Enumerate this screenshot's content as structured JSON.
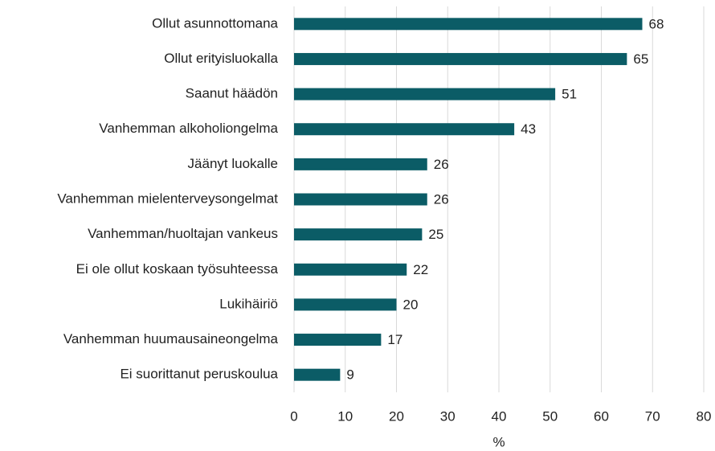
{
  "chart_data": {
    "type": "bar",
    "orientation": "horizontal",
    "categories": [
      "Ollut asunnottomana",
      "Ollut erityisluokalla",
      "Saanut häädön",
      "Vanhemman alkoholiongelma",
      "Jäänyt luokalle",
      "Vanhemman mielenterveysongelmat",
      "Vanhemman/huoltajan vankeus",
      "Ei ole ollut koskaan työsuhteessa",
      "Lukihäiriö",
      "Vanhemman huumausaineongelma",
      "Ei suorittanut peruskoulua"
    ],
    "values": [
      68,
      65,
      51,
      43,
      26,
      26,
      25,
      22,
      20,
      17,
      9
    ],
    "color": "#0b5c66",
    "x_label": "%",
    "xlim": [
      0,
      80
    ],
    "xticks": [
      0,
      10,
      20,
      30,
      40,
      50,
      60,
      70,
      80
    ],
    "grid": true
  }
}
